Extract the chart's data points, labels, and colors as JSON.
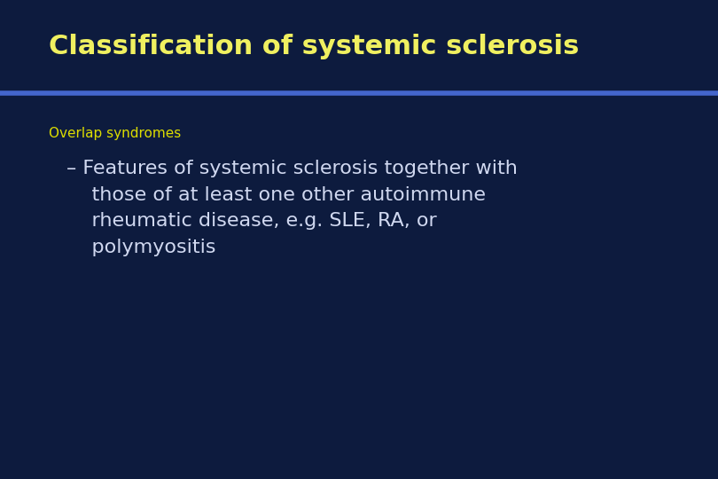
{
  "title": "Classification of systemic sclerosis",
  "title_color": "#f0f060",
  "title_fontsize": 22,
  "title_bold": true,
  "background_color": "#0d1b3e",
  "title_bg_color": "#0d1b3e",
  "separator_color": "#4466cc",
  "separator_linewidth": 4,
  "subtitle_label": "Overlap syndromes",
  "subtitle_color": "#dddd00",
  "subtitle_fontsize": 11,
  "body_text": "– Features of systemic sclerosis together with\n    those of at least one other autoimmune\n    rheumatic disease, e.g. SLE, RA, or\n    polymyositis",
  "body_color": "#d0d8f0",
  "body_fontsize": 16,
  "fig_width": 8.1,
  "fig_height": 5.4,
  "dpi": 100
}
